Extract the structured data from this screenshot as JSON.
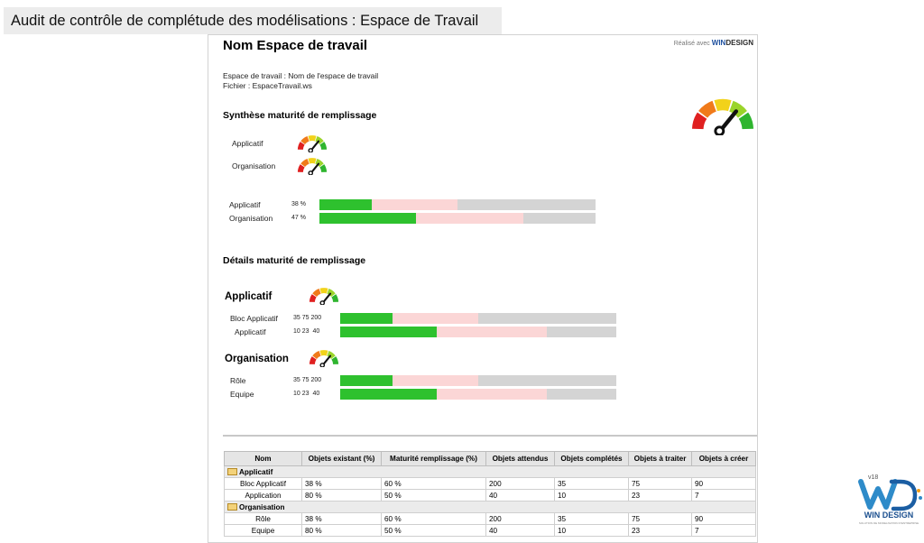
{
  "slide_title": "Audit de contrôle de complétude des modélisations : Espace de Travail",
  "report": {
    "title": "Nom Espace de travail",
    "brand": {
      "prefix": "Réalisé avec",
      "win": "WIN",
      "design": "DESIGN"
    },
    "info_workspace": "Espace de travail : Nom de l'espace de travail",
    "info_file": "Fichier : EspaceTravail.ws",
    "synthese_title": "Synthèse maturité de remplissage",
    "synthese_gauges": [
      {
        "label": "Applicatif"
      },
      {
        "label": "Organisation"
      }
    ],
    "synthese_bars": [
      {
        "label": "Applicatif",
        "pct": "38 %",
        "green": 0.19,
        "pink": 0.31
      },
      {
        "label": "Organisation",
        "pct": "47 %",
        "green": 0.35,
        "pink": 0.39
      }
    ],
    "details_title": "Détails maturité de remplissage",
    "details": [
      {
        "title": "Applicatif",
        "rows": [
          {
            "label": "Bloc Applicatif",
            "n1": "35",
            "n2": "75",
            "n3": "200",
            "green": 0.19,
            "pink": 0.31
          },
          {
            "label": "Applicatif",
            "n1": "10",
            "n2": "23",
            "n3": "40",
            "green": 0.35,
            "pink": 0.4
          }
        ]
      },
      {
        "title": "Organisation",
        "rows": [
          {
            "label": "Rôle",
            "n1": "35",
            "n2": "75",
            "n3": "200",
            "green": 0.19,
            "pink": 0.31
          },
          {
            "label": "Equipe",
            "n1": "10",
            "n2": "23",
            "n3": "40",
            "green": 0.35,
            "pink": 0.4
          }
        ]
      }
    ],
    "table": {
      "headers": [
        "Nom",
        "Objets existant (%)",
        "Maturité remplissage (%)",
        "Objets attendus",
        "Objets complétés",
        "Objets à traiter",
        "Objets à créer"
      ],
      "groups": [
        {
          "name": "Applicatif",
          "rows": [
            [
              "Bloc Applicatif",
              "38 %",
              "60 %",
              "200",
              "35",
              "75",
              "90"
            ],
            [
              "Application",
              "80 %",
              "50 %",
              "40",
              "10",
              "23",
              "7"
            ]
          ]
        },
        {
          "name": "Organisation",
          "rows": [
            [
              "Rôle",
              "38 %",
              "60 %",
              "200",
              "35",
              "75",
              "90"
            ],
            [
              "Equipe",
              "80 %",
              "50 %",
              "40",
              "10",
              "23",
              "7"
            ]
          ]
        }
      ]
    }
  },
  "logo": {
    "version": "v18",
    "name": "WIN DESIGN",
    "tagline": "SOLUTION DE MODELISATION D'ENTREPRISE"
  },
  "colors": {
    "bar_green": "#2ec12e",
    "bar_pink": "#fbd6d6",
    "bar_gray": "#d4d4d4",
    "gauge": [
      "#e02020",
      "#f07a1a",
      "#f2d21a",
      "#9ad42a",
      "#2fb52f"
    ],
    "brand_blue": "#1d4f9e"
  },
  "icons": {
    "gauge": "gauge-icon",
    "folder": "folder-icon",
    "logo": "win-design-logo"
  }
}
